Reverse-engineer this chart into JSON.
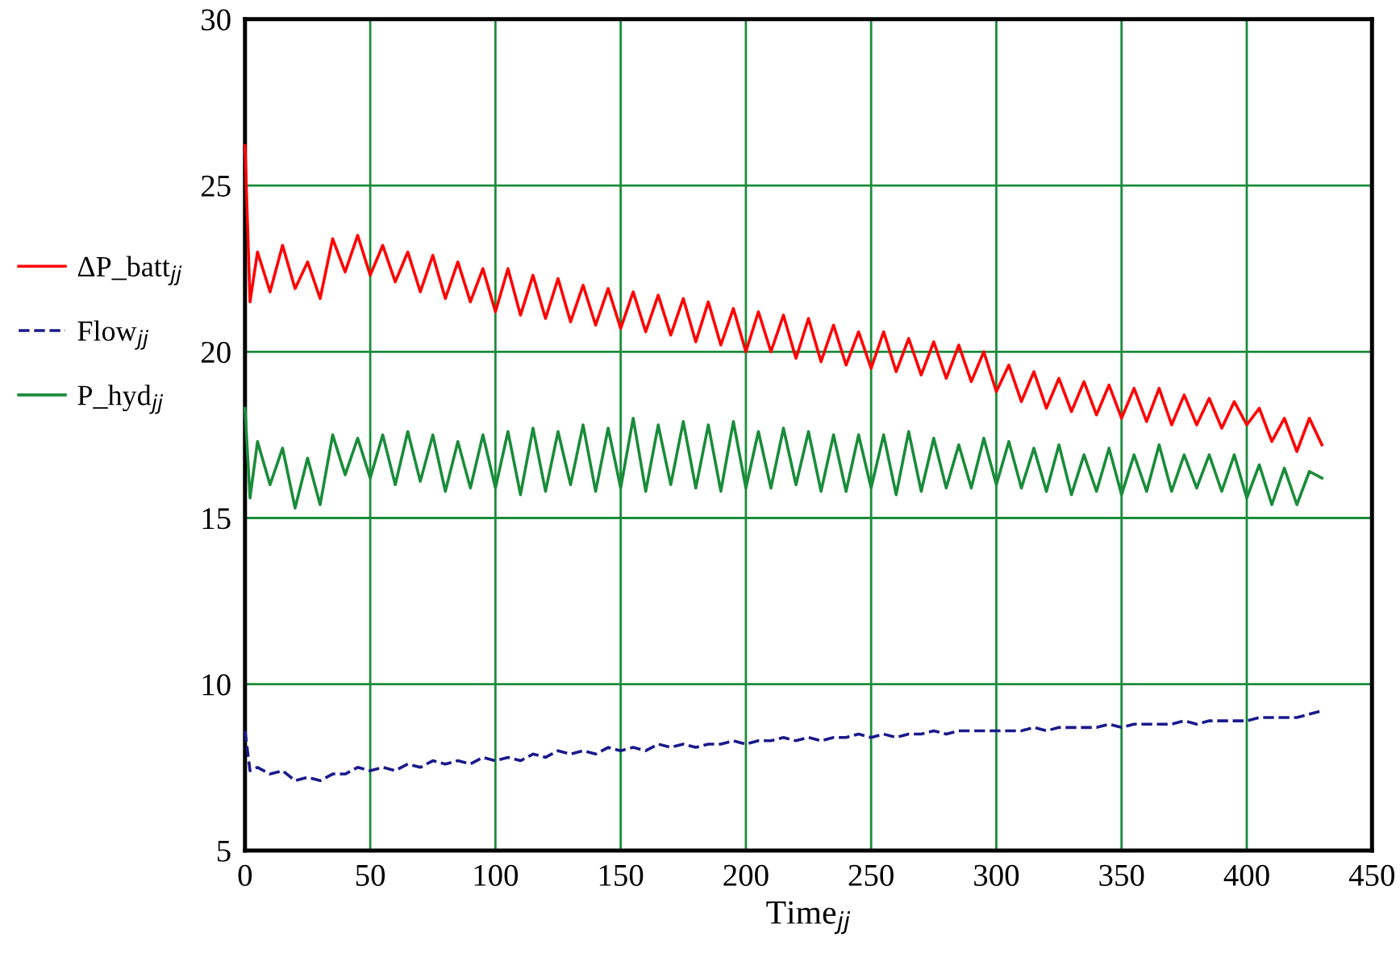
{
  "chart_data": {
    "type": "line",
    "xlabel": "Time$_{jj}$",
    "x": [
      0,
      2,
      5,
      10,
      15,
      20,
      25,
      30,
      35,
      40,
      45,
      50,
      55,
      60,
      65,
      70,
      75,
      80,
      85,
      90,
      95,
      100,
      105,
      110,
      115,
      120,
      125,
      130,
      135,
      140,
      145,
      150,
      155,
      160,
      165,
      170,
      175,
      180,
      185,
      190,
      195,
      200,
      205,
      210,
      215,
      220,
      225,
      230,
      235,
      240,
      245,
      250,
      255,
      260,
      265,
      270,
      275,
      280,
      285,
      290,
      295,
      300,
      305,
      310,
      315,
      320,
      325,
      330,
      335,
      340,
      345,
      350,
      355,
      360,
      365,
      370,
      375,
      380,
      385,
      390,
      395,
      400,
      405,
      410,
      415,
      420,
      425,
      430
    ],
    "series": [
      {
        "name": "ΔP_batt$_{jj}$",
        "color": "#ff0000",
        "line_style": "solid",
        "values": [
          26.2,
          21.5,
          23.0,
          21.8,
          23.2,
          21.9,
          22.7,
          21.6,
          23.4,
          22.4,
          23.5,
          22.3,
          23.2,
          22.1,
          23.0,
          21.8,
          22.9,
          21.6,
          22.7,
          21.5,
          22.5,
          21.2,
          22.5,
          21.1,
          22.3,
          21.0,
          22.2,
          20.9,
          22.0,
          20.8,
          21.9,
          20.7,
          21.8,
          20.6,
          21.7,
          20.5,
          21.6,
          20.3,
          21.5,
          20.2,
          21.3,
          20.0,
          21.2,
          20.0,
          21.1,
          19.8,
          21.0,
          19.7,
          20.8,
          19.6,
          20.6,
          19.5,
          20.6,
          19.4,
          20.4,
          19.3,
          20.3,
          19.2,
          20.2,
          19.1,
          20.0,
          18.8,
          19.6,
          18.5,
          19.4,
          18.3,
          19.2,
          18.2,
          19.1,
          18.1,
          19.0,
          18.0,
          18.9,
          17.9,
          18.9,
          17.8,
          18.7,
          17.8,
          18.6,
          17.7,
          18.5,
          17.8,
          18.3,
          17.3,
          18.0,
          17.0,
          18.0,
          17.2
        ]
      },
      {
        "name": "Flow$_{jj}$",
        "color": "#1a1a8c",
        "line_style": "dashed",
        "values": [
          8.6,
          7.4,
          7.5,
          7.3,
          7.4,
          7.1,
          7.2,
          7.1,
          7.3,
          7.3,
          7.5,
          7.4,
          7.5,
          7.4,
          7.6,
          7.5,
          7.7,
          7.6,
          7.7,
          7.6,
          7.8,
          7.7,
          7.8,
          7.7,
          7.9,
          7.8,
          8.0,
          7.9,
          8.0,
          7.9,
          8.1,
          8.0,
          8.1,
          8.0,
          8.2,
          8.1,
          8.2,
          8.1,
          8.2,
          8.2,
          8.3,
          8.2,
          8.3,
          8.3,
          8.4,
          8.3,
          8.4,
          8.3,
          8.4,
          8.4,
          8.5,
          8.4,
          8.5,
          8.4,
          8.5,
          8.5,
          8.6,
          8.5,
          8.6,
          8.6,
          8.6,
          8.6,
          8.6,
          8.6,
          8.7,
          8.6,
          8.7,
          8.7,
          8.7,
          8.7,
          8.8,
          8.7,
          8.8,
          8.8,
          8.8,
          8.8,
          8.9,
          8.8,
          8.9,
          8.9,
          8.9,
          8.9,
          9.0,
          9.0,
          9.0,
          9.0,
          9.1,
          9.2
        ]
      },
      {
        "name": "P_hyd$_{jj}$",
        "color": "#1a8c3a",
        "line_style": "solid",
        "values": [
          18.3,
          15.6,
          17.3,
          16.0,
          17.1,
          15.3,
          16.8,
          15.4,
          17.5,
          16.3,
          17.4,
          16.2,
          17.5,
          16.0,
          17.6,
          16.1,
          17.5,
          15.8,
          17.3,
          15.9,
          17.5,
          15.9,
          17.6,
          15.7,
          17.7,
          15.8,
          17.6,
          16.0,
          17.8,
          15.8,
          17.7,
          15.9,
          18.0,
          15.8,
          17.8,
          16.0,
          17.9,
          15.9,
          17.8,
          15.8,
          17.9,
          15.9,
          17.6,
          15.9,
          17.7,
          16.0,
          17.6,
          15.8,
          17.5,
          15.8,
          17.5,
          15.9,
          17.5,
          15.7,
          17.6,
          15.8,
          17.4,
          15.9,
          17.2,
          15.9,
          17.4,
          16.0,
          17.3,
          15.9,
          17.1,
          15.8,
          17.2,
          15.7,
          16.9,
          15.8,
          17.1,
          15.7,
          16.9,
          15.8,
          17.2,
          15.8,
          16.9,
          15.9,
          16.9,
          15.8,
          16.9,
          15.6,
          16.6,
          15.4,
          16.5,
          15.4,
          16.4,
          16.2
        ]
      }
    ],
    "xlim": [
      0,
      450
    ],
    "xticks": [
      0,
      50,
      100,
      150,
      200,
      250,
      300,
      350,
      400,
      450
    ],
    "ylim": [
      5,
      30
    ],
    "yticks": [
      5,
      10,
      15,
      20,
      25,
      30
    ],
    "grid": true,
    "legend": "left",
    "marker": "none"
  }
}
